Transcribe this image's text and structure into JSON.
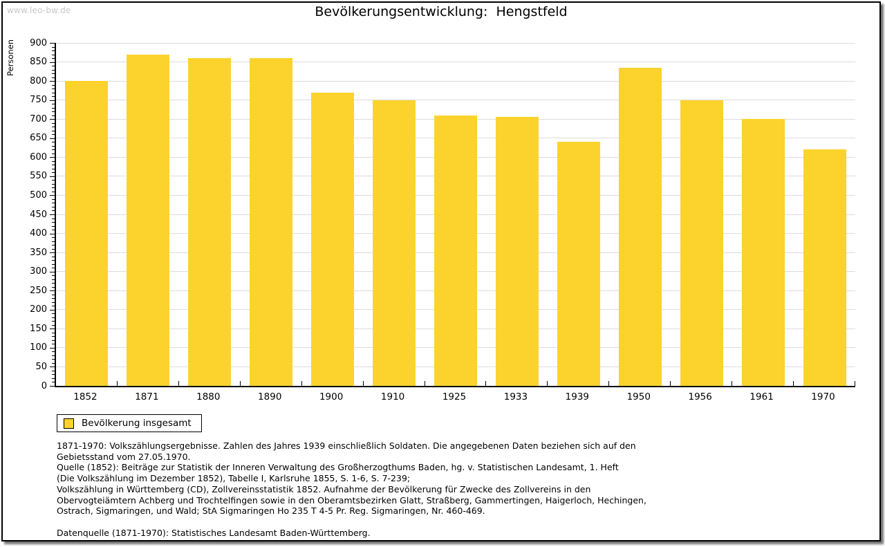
{
  "watermark": "www.leo-bw.de",
  "chart_data": {
    "type": "bar",
    "title": "Bevölkerungsentwicklung:  Hengstfeld",
    "xlabel": "",
    "ylabel": "Personen",
    "categories": [
      "1852",
      "1871",
      "1880",
      "1890",
      "1900",
      "1910",
      "1925",
      "1933",
      "1939",
      "1950",
      "1956",
      "1961",
      "1970"
    ],
    "series": [
      {
        "name": "Bevölkerung insgesamt",
        "values": [
          800,
          870,
          860,
          860,
          770,
          750,
          710,
          705,
          640,
          835,
          750,
          700,
          620
        ]
      }
    ],
    "ylim": [
      0,
      900
    ],
    "ytick_step": 50,
    "ytick_minor_step": 10,
    "grid": true,
    "legend_position": "bottom-left",
    "bar_color": "#fcd32d",
    "grid_color": "#dcdcdc",
    "axis_color": "#000000",
    "watermark_color": "#c8c8c8"
  },
  "footer": {
    "lines": [
      "1871-1970: Volkszählungsergebnisse. Zahlen des Jahres 1939 einschließlich Soldaten. Die angegebenen Daten beziehen sich auf den",
      "Gebietsstand vom 27.05.1970.",
      "Quelle (1852): Beiträge zur Statistik der Inneren Verwaltung des Großherzogthums Baden, hg. v. Statistischen Landesamt, 1. Heft",
      "(Die Volkszählung im Dezember 1852), Tabelle I, Karlsruhe 1855, S. 1-6, S. 7-239;",
      "Volkszählung in Württemberg (CD), Zollvereinsstatistik 1852. Aufnahme der Bevölkerung für Zwecke des Zollvereins in den",
      "Obervogteiämtern Achberg und Trochtelfingen sowie in den Oberamtsbezirken Glatt, Straßberg, Gammertingen, Haigerloch, Hechingen,",
      "Ostrach, Sigmaringen, und Wald; StA Sigmaringen Ho 235 T 4-5 Pr. Reg. Sigmaringen, Nr. 460-469.",
      "",
      "Datenquelle (1871-1970): Statistisches Landesamt Baden-Württemberg."
    ]
  }
}
